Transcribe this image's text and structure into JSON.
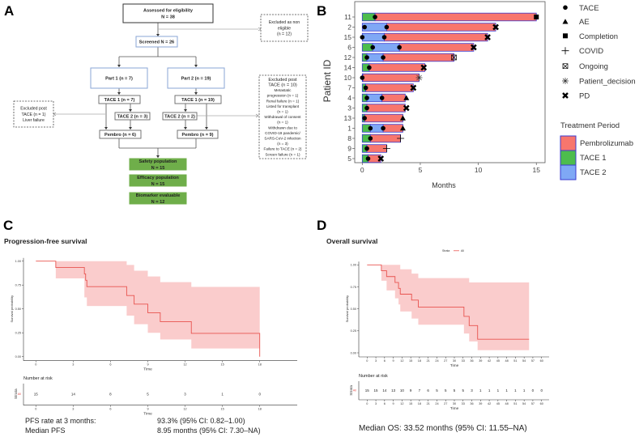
{
  "panel_labels": {
    "a": "A",
    "b": "B",
    "c": "C",
    "d": "D"
  },
  "flowchart": {
    "boxes": [
      {
        "id": "assessed",
        "style": "dark",
        "lines": [
          "Assessed for eligibility",
          "N = 38"
        ]
      },
      {
        "id": "excluded_non_eligible",
        "style": "dashed",
        "lines": [
          "Excluded as non",
          "eligible",
          "(n = 12)"
        ]
      },
      {
        "id": "screened",
        "style": "blue",
        "lines": [
          "Screened  N = 26"
        ]
      },
      {
        "id": "part1",
        "style": "blue",
        "lines": [
          "Part 1 (n = 7)"
        ]
      },
      {
        "id": "part2",
        "style": "blue",
        "lines": [
          "Part 2 (n = 19)"
        ]
      },
      {
        "id": "tace1_part1",
        "style": "gray",
        "lines": [
          "TACE 1 (n = 7)"
        ]
      },
      {
        "id": "tace1_part2",
        "style": "gray",
        "lines": [
          "TACE 1 (n = 19)"
        ]
      },
      {
        "id": "tace2_part1",
        "style": "gray",
        "lines": [
          "TACE 2 (n = 3)"
        ]
      },
      {
        "id": "tace2_part2",
        "style": "gray",
        "lines": [
          "TACE 2 (n = 2)"
        ]
      },
      {
        "id": "pembro_part1",
        "style": "gray",
        "lines": [
          "Pembro (n = 6)"
        ]
      },
      {
        "id": "pembro_part2",
        "style": "gray",
        "lines": [
          "Pembro (n = 9)"
        ]
      },
      {
        "id": "excluded_post_tace_1",
        "style": "dashed",
        "lines": [
          "Excluded post",
          "TACE (n = 1)",
          "Liver failure"
        ]
      },
      {
        "id": "excluded_post_tace_10",
        "style": "dashed",
        "lines": [
          "Excluded post",
          "TACE (n = 10)",
          "Metastatic",
          "progression (n = 1)",
          "Renal failure (n = 1)",
          "Listed for transplant",
          "(n = 1)",
          "Withdrawal of consent",
          "(n = 1)",
          "Withdrawn due to",
          "COVID-19 pandemic/",
          "SARS-CoV-2 infection",
          "(n = 3)",
          "Failure to TACE (n = 2)",
          "Screen failure (n = 1)"
        ]
      },
      {
        "id": "safety",
        "style": "green",
        "lines": [
          "Safety population",
          "N = 15"
        ]
      },
      {
        "id": "efficacy",
        "style": "green",
        "lines": [
          "Efficacy population",
          "N = 15"
        ]
      },
      {
        "id": "biomarker",
        "style": "green",
        "lines": [
          "Biomarker evaluable",
          "N = 12"
        ]
      }
    ]
  },
  "chart_data": [
    {
      "type": "swimmer",
      "panel": "B",
      "xlabel": "Months",
      "ylabel": "Patient ID",
      "xlim": [
        0,
        15
      ],
      "xticks": [
        0,
        5,
        10,
        15
      ],
      "colors": {
        "Pembrolizumab": "#F8766D",
        "TACE 1": "#4DBD4D",
        "TACE 2": "#7FA8F5",
        "bar_outline": "#3A3ACF"
      },
      "patients": [
        {
          "id": "11",
          "segments": [
            [
              "TACE 1",
              0,
              1.1
            ],
            [
              "Pembrolizumab",
              1.1,
              15
            ]
          ],
          "tace": [
            1.1
          ],
          "event": "Completion",
          "event_time": 15
        },
        {
          "id": "2",
          "segments": [
            [
              "TACE 2",
              0,
              2.1
            ],
            [
              "Pembrolizumab",
              2.1,
              11.5
            ]
          ],
          "tace": [
            0.2,
            2.1
          ],
          "event": "PD",
          "event_time": 11.5
        },
        {
          "id": "15",
          "segments": [
            [
              "TACE 2",
              0,
              1.9
            ],
            [
              "Pembrolizumab",
              1.9,
              10.8
            ]
          ],
          "tace": [
            0,
            1.9
          ],
          "event": "PD",
          "event_time": 10.8
        },
        {
          "id": "6",
          "segments": [
            [
              "TACE 1",
              0,
              0.9
            ],
            [
              "TACE 2",
              0.9,
              3.2
            ],
            [
              "Pembrolizumab",
              3.2,
              9.6
            ]
          ],
          "tace": [
            0.9,
            3.2
          ],
          "event": "PD",
          "event_time": 9.6
        },
        {
          "id": "12",
          "segments": [
            [
              "TACE 1",
              0,
              0.4
            ],
            [
              "TACE 2",
              0.4,
              1.8
            ],
            [
              "Pembrolizumab",
              1.8,
              7.9
            ]
          ],
          "tace": [
            0.4,
            1.8
          ],
          "event": "Ongoing",
          "event_time": 7.9
        },
        {
          "id": "14",
          "segments": [
            [
              "TACE 1",
              0,
              0.6
            ],
            [
              "Pembrolizumab",
              0.6,
              5.4
            ]
          ],
          "tace": [
            0.6
          ],
          "event": "PD",
          "event_time": 5.3
        },
        {
          "id": "10",
          "segments": [
            [
              "TACE 1",
              0,
              0.05
            ],
            [
              "Pembrolizumab",
              0.05,
              4.9
            ]
          ],
          "tace": [
            0
          ],
          "event": "Patient_decision",
          "event_time": 4.9
        },
        {
          "id": "7",
          "segments": [
            [
              "TACE 1",
              0,
              0.3
            ],
            [
              "Pembrolizumab",
              0.3,
              4.4
            ]
          ],
          "tace": [
            0.3
          ],
          "event": "PD",
          "event_time": 4.4
        },
        {
          "id": "4",
          "segments": [
            [
              "TACE 1",
              0,
              0.4
            ],
            [
              "TACE 2",
              0.4,
              1.7
            ],
            [
              "Pembrolizumab",
              1.7,
              3.7
            ]
          ],
          "tace": [
            0.4,
            1.7
          ],
          "event": "AE",
          "event_time": 3.8
        },
        {
          "id": "3",
          "segments": [
            [
              "TACE 1",
              0,
              0.4
            ],
            [
              "Pembrolizumab",
              0.4,
              3.7
            ]
          ],
          "tace": [
            0.4
          ],
          "event": "PD",
          "event_time": 3.8
        },
        {
          "id": "13",
          "segments": [
            [
              "TACE 1",
              0,
              0.2
            ],
            [
              "Pembrolizumab",
              0.2,
              3.5
            ]
          ],
          "tace": [
            0.2
          ],
          "event": "AE",
          "event_time": 3.5
        },
        {
          "id": "1",
          "segments": [
            [
              "TACE 1",
              0,
              0.7
            ],
            [
              "TACE 2",
              0.7,
              1.8
            ],
            [
              "Pembrolizumab",
              1.8,
              3.5
            ]
          ],
          "tace": [
            0.7,
            1.8
          ],
          "event": "AE",
          "event_time": 3.5
        },
        {
          "id": "8",
          "segments": [
            [
              "TACE 1",
              0,
              0.7
            ],
            [
              "Pembrolizumab",
              0.7,
              3.3
            ]
          ],
          "tace": [
            0.7
          ],
          "event": "COVID",
          "event_time": 3.3
        },
        {
          "id": "9",
          "segments": [
            [
              "TACE 1",
              0,
              0.4
            ],
            [
              "Pembrolizumab",
              0.4,
              2.1
            ]
          ],
          "tace": [
            0.4
          ],
          "event": "COVID",
          "event_time": 2.1
        },
        {
          "id": "5",
          "segments": [
            [
              "TACE 1",
              0,
              0.5
            ],
            [
              "Pembrolizumab",
              0.5,
              1.6
            ]
          ],
          "tace": [
            0.5
          ],
          "event": "PD",
          "event_time": 1.6
        }
      ],
      "marker_legend": [
        {
          "label": "TACE",
          "symbol": "circle"
        },
        {
          "label": "AE",
          "symbol": "triangle"
        },
        {
          "label": "Completion",
          "symbol": "square"
        },
        {
          "label": "COVID",
          "symbol": "plus"
        },
        {
          "label": "Ongoing",
          "symbol": "boxed-x"
        },
        {
          "label": "Patient_decision",
          "symbol": "asterisk"
        },
        {
          "label": "PD",
          "symbol": "cross"
        }
      ],
      "fill_legend_title": "Treatment Period",
      "fill_legend": [
        "Pembrolizumab",
        "TACE 1",
        "TACE 2"
      ]
    },
    {
      "type": "line",
      "subtype": "kaplan-meier",
      "panel": "C",
      "title": "Progression-free survival",
      "xlabel": "Time",
      "ylabel": "Survival probability",
      "xlim": [
        0,
        18
      ],
      "ylim": [
        0,
        1
      ],
      "xticks": [
        0,
        3,
        6,
        9,
        12,
        15,
        18
      ],
      "yticks": [
        "0.00",
        "0.25",
        "0.50",
        "0.75",
        "1.00"
      ],
      "color": "#E8534F",
      "ci_color": "#F9C6C6",
      "steps": {
        "time": [
          0,
          1.6,
          3.9,
          4.0,
          4.1,
          7.3,
          7.9,
          9.0,
          10.0,
          12.5,
          18
        ],
        "surv": [
          1.0,
          0.933,
          0.867,
          0.8,
          0.733,
          0.64,
          0.55,
          0.46,
          0.367,
          0.244,
          0.0
        ]
      },
      "ci_upper": [
        1.0,
        1.0,
        1.0,
        1.0,
        1.0,
        0.96,
        0.9,
        0.84,
        0.78,
        0.73,
        0.73
      ],
      "ci_lower": [
        1.0,
        0.82,
        0.62,
        0.62,
        0.53,
        0.43,
        0.34,
        0.25,
        0.18,
        0.085,
        0.085
      ],
      "risk_table": {
        "title": "Number at risk",
        "ylabel": "Strata",
        "strata": "All",
        "times": [
          0,
          3,
          6,
          9,
          12,
          15,
          18
        ],
        "counts": [
          15,
          14,
          8,
          5,
          3,
          1,
          0
        ],
        "xlabel": "Time"
      },
      "notes": [
        {
          "label": "PFS rate at 3 months:",
          "value": "93.3% (95% CI: 0.82–1.00)"
        },
        {
          "label": "Median PFS",
          "value": "8.95 months (95% CI: 7.30–NA)"
        }
      ]
    },
    {
      "type": "line",
      "subtype": "kaplan-meier",
      "panel": "D",
      "title": "Overall survival",
      "legend": {
        "title": "Strata",
        "entries": [
          "All"
        ],
        "position": "top"
      },
      "xlabel": "Time",
      "ylabel": "Survival probability",
      "xlim": [
        0,
        60
      ],
      "ylim": [
        0,
        1
      ],
      "xticks": [
        0,
        3,
        6,
        9,
        12,
        15,
        18,
        21,
        24,
        27,
        30,
        33,
        36,
        39,
        42,
        45,
        48,
        51,
        54,
        57,
        60
      ],
      "yticks": [
        "0.00",
        "0.25",
        "0.50",
        "0.75",
        "1.00"
      ],
      "color": "#E8534F",
      "ci_color": "#F9C6C6",
      "steps": {
        "time": [
          0,
          4.9,
          6.7,
          9.6,
          10.8,
          11.4,
          15.3,
          17.6,
          33.3,
          35.1,
          38.0,
          55.7
        ],
        "surv": [
          1.0,
          0.933,
          0.867,
          0.8,
          0.733,
          0.667,
          0.6,
          0.52,
          0.415,
          0.31,
          0.155,
          0.155
        ]
      },
      "ci_upper": [
        1.0,
        1.0,
        1.0,
        1.0,
        1.0,
        0.95,
        0.9,
        0.85,
        0.85,
        0.8,
        0.8,
        0.8
      ],
      "ci_lower": [
        1.0,
        0.82,
        0.71,
        0.62,
        0.55,
        0.47,
        0.39,
        0.32,
        0.22,
        0.13,
        0.03,
        0.03
      ],
      "risk_table": {
        "title": "Number at risk",
        "ylabel": "Strata",
        "strata": "All",
        "times": [
          0,
          3,
          6,
          9,
          12,
          15,
          18,
          21,
          24,
          27,
          30,
          33,
          36,
          39,
          42,
          45,
          48,
          51,
          54,
          57,
          60
        ],
        "counts": [
          15,
          15,
          14,
          13,
          10,
          9,
          7,
          6,
          5,
          5,
          5,
          5,
          3,
          1,
          1,
          1,
          1,
          1,
          1,
          0,
          0
        ],
        "xlabel": "Time"
      },
      "notes": [
        {
          "label": "Median OS: 33.52 months (95% CI: 11.55–NA)",
          "value": ""
        }
      ]
    }
  ]
}
